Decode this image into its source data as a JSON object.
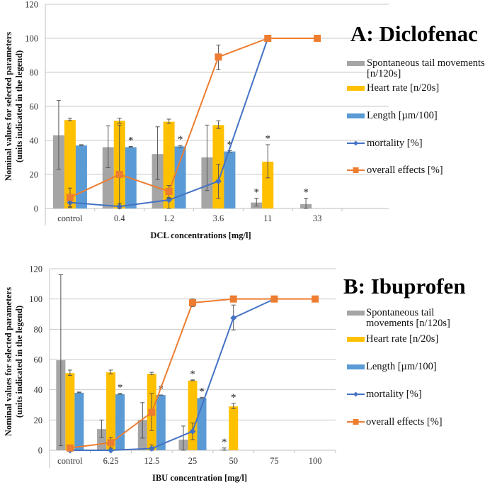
{
  "chart_data": [
    {
      "type": "bar",
      "panel_title": "A: Diclofenac",
      "xlabel": "DCL concentrations [mg/l]",
      "ylabel": [
        "Nominal values for selected parameters",
        "(units indicated in the legend)"
      ],
      "ylim": [
        0,
        120
      ],
      "yticks": [
        0,
        20,
        40,
        60,
        80,
        100,
        120
      ],
      "grid": true,
      "legend_position": "right",
      "categories": [
        "control",
        "0.4",
        "1.2",
        "3.6",
        "11",
        "33"
      ],
      "bar_series": [
        {
          "name": "Spontaneous tail movements [n/120s]",
          "color": "#A5A5A5",
          "values": [
            43,
            36,
            32,
            30,
            3.5,
            2.5
          ],
          "err_low": [
            23,
            24,
            17,
            10.5,
            1.5,
            0
          ],
          "err_high": [
            63.5,
            48.5,
            48,
            49,
            6,
            6
          ],
          "significant": [
            false,
            false,
            false,
            false,
            true,
            true
          ]
        },
        {
          "name": "Heart rate [n/20s]",
          "color": "#FFC000",
          "values": [
            52,
            51.5,
            51,
            49,
            27.5,
            null
          ],
          "err_low": [
            51.5,
            50,
            50,
            47,
            18,
            null
          ],
          "err_high": [
            53,
            53,
            52.5,
            51.5,
            37.5,
            null
          ],
          "significant": [
            false,
            false,
            false,
            false,
            true,
            false
          ]
        },
        {
          "name": "Length [µm/100]",
          "color": "#5B9BD5",
          "values": [
            37,
            36,
            36.5,
            33.5,
            null,
            null
          ],
          "err_low": [
            37,
            36,
            36,
            33,
            null,
            null
          ],
          "err_high": [
            37.5,
            36.5,
            37,
            34,
            null,
            null
          ],
          "significant": [
            false,
            true,
            true,
            true,
            false,
            false
          ]
        }
      ],
      "line_series": [
        {
          "name": "mortality [%]",
          "color": "#4472C4",
          "marker": "diamond",
          "values": [
            3.5,
            1.2,
            5,
            16,
            100,
            null
          ],
          "err_low": [
            0.5,
            0,
            0,
            6,
            null,
            null
          ],
          "err_high": [
            6,
            3,
            6.5,
            26,
            null,
            null
          ]
        },
        {
          "name": "overall effects [%]",
          "color": "#ED7D31",
          "marker": "square",
          "values": [
            6.5,
            20,
            10,
            89,
            100,
            100
          ],
          "err_low": [
            1,
            0,
            6,
            81.5,
            null,
            null
          ],
          "err_high": [
            12,
            49,
            13.5,
            96,
            null,
            null
          ]
        }
      ],
      "legend": [
        "Spontaneous tail movements",
        "[n/120s]",
        "Heart rate [n/20s]",
        "Length [µm/100]",
        "mortality [%]",
        "overall effects [%]"
      ],
      "significance_marker": "*"
    },
    {
      "type": "bar",
      "panel_title": "B: Ibuprofen",
      "xlabel": "IBU concentration [mg/l]",
      "ylabel": [
        "Nominal values for selected parameters",
        "(units indicated in the legend)"
      ],
      "ylim": [
        0,
        120
      ],
      "yticks": [
        0,
        20,
        40,
        60,
        80,
        100,
        120
      ],
      "grid": true,
      "legend_position": "right",
      "categories": [
        "control",
        "6.25",
        "12.5",
        "25",
        "50",
        "75",
        "100"
      ],
      "bar_series": [
        {
          "name": "Spontaneous tail movements [n/120s]",
          "color": "#A5A5A5",
          "values": [
            59.5,
            14,
            20,
            7,
            0.5,
            null,
            null
          ],
          "err_low": [
            3,
            8.5,
            8,
            0,
            0,
            null,
            null
          ],
          "err_high": [
            116,
            20,
            31.5,
            16,
            1.5,
            null,
            null
          ],
          "significant": [
            false,
            false,
            false,
            false,
            true,
            false,
            false
          ]
        },
        {
          "name": "Heart rate [n/20s]",
          "color": "#FFC000",
          "values": [
            51,
            51.5,
            50.5,
            46,
            29,
            null,
            null
          ],
          "err_low": [
            49.5,
            50.5,
            50,
            46,
            27.5,
            null,
            null
          ],
          "err_high": [
            53,
            53,
            51.5,
            46.5,
            31,
            null,
            null
          ],
          "significant": [
            false,
            false,
            false,
            true,
            true,
            false,
            false
          ]
        },
        {
          "name": "Length [µm/100]",
          "color": "#5B9BD5",
          "values": [
            38,
            37,
            36.5,
            34.5,
            null,
            null,
            null
          ],
          "err_low": [
            38,
            37,
            36.5,
            34,
            null,
            null,
            null
          ],
          "err_high": [
            38.5,
            37.5,
            36.5,
            35,
            null,
            null,
            null
          ],
          "significant": [
            false,
            true,
            true,
            true,
            false,
            false,
            false
          ]
        }
      ],
      "line_series": [
        {
          "name": "mortality [%]",
          "color": "#4472C4",
          "marker": "diamond",
          "values": [
            0,
            0,
            1.2,
            12.5,
            87.5,
            100,
            null
          ],
          "err_low": [
            null,
            null,
            0,
            7,
            79.5,
            null,
            null
          ],
          "err_high": [
            null,
            null,
            3.5,
            18,
            96,
            null,
            null
          ]
        },
        {
          "name": "overall effects [%]",
          "color": "#ED7D31",
          "marker": "square",
          "values": [
            1.5,
            5,
            25,
            97.5,
            100,
            100,
            100
          ],
          "err_low": [
            0,
            1.5,
            13,
            95,
            null,
            null,
            null
          ],
          "err_high": [
            3.5,
            8.5,
            37.5,
            100,
            null,
            null,
            null
          ]
        }
      ],
      "legend": [
        "Spontaneous tail",
        "movements [n/120s]",
        "Heart rate [n/20s]",
        "Length [µm/100]",
        "mortality [%]",
        "overall effects [%]"
      ],
      "significance_marker": "*"
    }
  ]
}
